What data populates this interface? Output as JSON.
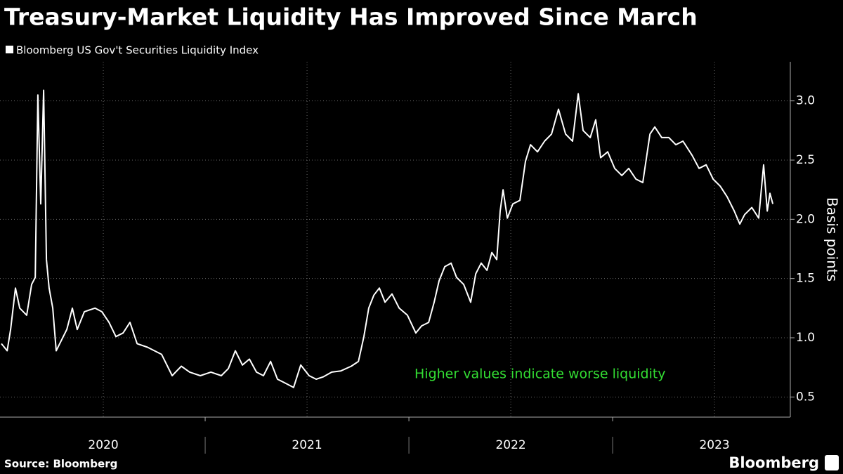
{
  "chart_data": {
    "type": "line",
    "title": "Treasury-Market Liquidity Has Improved Since March",
    "y_label": "Basis points",
    "annotation": "Higher values indicate worse liquidity",
    "source": "Source: Bloomberg",
    "brand": "Bloomberg",
    "x": [
      2020.0,
      2020.028,
      2020.045,
      2020.069,
      2020.09,
      2020.124,
      2020.148,
      2020.166,
      2020.179,
      2020.193,
      2020.207,
      2020.221,
      2020.234,
      2020.252,
      2020.269,
      2020.286,
      2020.321,
      2020.348,
      2020.372,
      2020.407,
      2020.459,
      2020.493,
      2020.528,
      2020.562,
      2020.597,
      2020.631,
      2020.666,
      2020.717,
      2020.786,
      2020.838,
      2020.883,
      2020.924,
      2020.976,
      2021.028,
      2021.079,
      2021.114,
      2021.148,
      2021.183,
      2021.217,
      2021.252,
      2021.286,
      2021.321,
      2021.355,
      2021.39,
      2021.434,
      2021.469,
      2021.51,
      2021.545,
      2021.579,
      2021.621,
      2021.666,
      2021.717,
      2021.752,
      2021.779,
      2021.803,
      2021.828,
      2021.855,
      2021.883,
      2021.917,
      2021.952,
      2021.993,
      2022.034,
      2022.062,
      2022.097,
      2022.124,
      2022.148,
      2022.176,
      2022.207,
      2022.234,
      2022.269,
      2022.303,
      2022.328,
      2022.355,
      2022.383,
      2022.407,
      2022.431,
      2022.448,
      2022.462,
      2022.483,
      2022.51,
      2022.545,
      2022.572,
      2022.597,
      2022.631,
      2022.666,
      2022.7,
      2022.734,
      2022.769,
      2022.803,
      2022.831,
      2022.855,
      2022.89,
      2022.917,
      2022.941,
      2022.976,
      2023.01,
      2023.045,
      2023.079,
      2023.114,
      2023.148,
      2023.183,
      2023.207,
      2023.241,
      2023.276,
      2023.31,
      2023.345,
      2023.39,
      2023.424,
      2023.459,
      2023.493,
      2023.528,
      2023.562,
      2023.597,
      2023.624,
      2023.648,
      2023.683,
      2023.717,
      2023.741,
      2023.759,
      2023.772,
      2023.786
    ],
    "series": [
      {
        "name": "Bloomberg US Gov't Securities Liquidity Index",
        "color": "#ffffff",
        "values": [
          0.95,
          0.89,
          1.07,
          1.42,
          1.25,
          1.19,
          1.45,
          1.51,
          3.05,
          2.13,
          3.09,
          1.66,
          1.42,
          1.25,
          0.89,
          0.95,
          1.07,
          1.25,
          1.07,
          1.22,
          1.25,
          1.22,
          1.13,
          1.01,
          1.04,
          1.13,
          0.95,
          0.92,
          0.86,
          0.68,
          0.76,
          0.71,
          0.68,
          0.71,
          0.68,
          0.74,
          0.89,
          0.77,
          0.82,
          0.71,
          0.68,
          0.8,
          0.65,
          0.62,
          0.58,
          0.77,
          0.68,
          0.65,
          0.67,
          0.71,
          0.72,
          0.76,
          0.8,
          1.01,
          1.25,
          1.36,
          1.42,
          1.3,
          1.37,
          1.25,
          1.19,
          1.04,
          1.1,
          1.13,
          1.3,
          1.48,
          1.6,
          1.63,
          1.51,
          1.45,
          1.3,
          1.54,
          1.63,
          1.57,
          1.72,
          1.66,
          2.07,
          2.25,
          2.01,
          2.13,
          2.16,
          2.49,
          2.63,
          2.57,
          2.66,
          2.72,
          2.93,
          2.72,
          2.66,
          3.06,
          2.75,
          2.69,
          2.84,
          2.52,
          2.57,
          2.43,
          2.37,
          2.43,
          2.34,
          2.31,
          2.72,
          2.78,
          2.69,
          2.69,
          2.63,
          2.66,
          2.54,
          2.43,
          2.46,
          2.34,
          2.28,
          2.19,
          2.07,
          1.96,
          2.04,
          2.1,
          2.01,
          2.46,
          2.07,
          2.22,
          2.13
        ]
      }
    ],
    "xlim": [
      2019.993,
      2023.872
    ],
    "xticks": [
      {
        "value": 2020.5,
        "label": "2020"
      },
      {
        "value": 2021.5,
        "label": "2021"
      },
      {
        "value": 2022.5,
        "label": "2022"
      },
      {
        "value": 2023.5,
        "label": "2023"
      }
    ],
    "ylim": [
      0.33,
      3.33
    ],
    "yticks": [
      0.5,
      {
        "value": 1,
        "label": "1.0"
      },
      1.5,
      {
        "value": 2,
        "label": "2.0"
      },
      2.5,
      {
        "value": 3,
        "label": "3.0"
      }
    ],
    "grid": true
  }
}
